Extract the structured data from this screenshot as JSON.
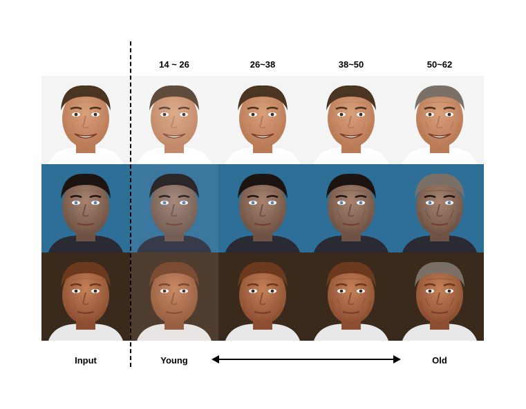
{
  "header_ranges": [
    "14 ~ 26",
    "26~38",
    "38~50",
    "50~62"
  ],
  "footer": {
    "input": "Input",
    "young": "Young",
    "old": "Old"
  },
  "rows": [
    {
      "bg": "#f4f4f4",
      "skin": "#d9a07c",
      "shade": "#b97a55",
      "hair": "#4a3422",
      "shirt": "#ffffff",
      "wash": "#ffffff"
    },
    {
      "bg": "#2e6f98",
      "skin": "#a88470",
      "shade": "#6e5244",
      "hair": "#1c1410",
      "shirt": "#2a2a35",
      "wash": "#9bb8d8"
    },
    {
      "bg": "#3a2a1c",
      "skin": "#c48059",
      "shade": "#8c4f31",
      "hair": "#6b3a1e",
      "shirt": "#e8e8e8",
      "wash": "#f0d6c0"
    }
  ],
  "age_columns": 5
}
